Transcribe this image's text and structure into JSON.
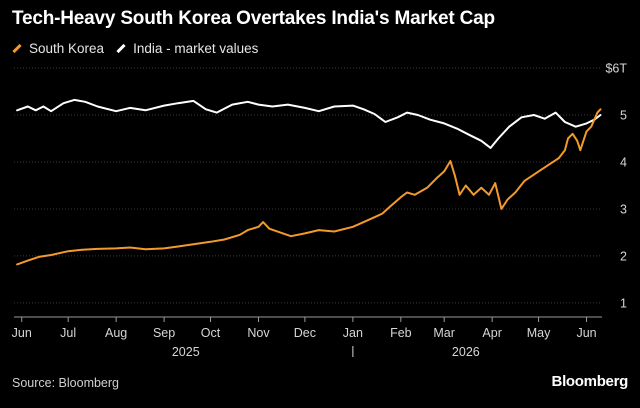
{
  "title": "Tech-Heavy South Korea Overtakes India's Market Cap",
  "legend": {
    "south_korea": "South Korea",
    "india": "India - market values"
  },
  "source": "Source: Bloomberg",
  "brand": "Bloomberg",
  "colors": {
    "south_korea": "#f39a2b",
    "india": "#ffffff",
    "grid": "#3a3a3a",
    "background": "#000000"
  },
  "chart_data": {
    "type": "line",
    "ylim": [
      0.7,
      6
    ],
    "y_unit_label": "$6T",
    "y_ticks": [
      {
        "value": 1,
        "label": "1"
      },
      {
        "value": 2,
        "label": "2"
      },
      {
        "value": 3,
        "label": "3"
      },
      {
        "value": 4,
        "label": "4"
      },
      {
        "value": 5,
        "label": "5"
      },
      {
        "value": 6,
        "label": "$6T"
      }
    ],
    "x_range": [
      "2025-05-27",
      "2026-06-11"
    ],
    "x_ticks": [
      {
        "date": "2025-06-01",
        "label": "Jun"
      },
      {
        "date": "2025-07-01",
        "label": "Jul"
      },
      {
        "date": "2025-08-01",
        "label": "Aug"
      },
      {
        "date": "2025-09-01",
        "label": "Sep"
      },
      {
        "date": "2025-10-01",
        "label": "Oct"
      },
      {
        "date": "2025-11-01",
        "label": "Nov"
      },
      {
        "date": "2025-12-01",
        "label": "Dec"
      },
      {
        "date": "2026-01-01",
        "label": "Jan"
      },
      {
        "date": "2026-02-01",
        "label": "Feb"
      },
      {
        "date": "2026-03-01",
        "label": "Mar"
      },
      {
        "date": "2026-04-01",
        "label": "Apr"
      },
      {
        "date": "2026-05-01",
        "label": "May"
      },
      {
        "date": "2026-06-01",
        "label": "Jun"
      }
    ],
    "year_labels": [
      {
        "date": "2025-09-15",
        "label": "2025"
      },
      {
        "date": "2026-03-15",
        "label": "2026"
      }
    ],
    "year_separator_date": "2026-01-01",
    "grid": "horizontal",
    "series": [
      {
        "name": "South Korea",
        "key": "south_korea",
        "points": [
          [
            "2025-05-29",
            1.82
          ],
          [
            "2025-06-05",
            1.9
          ],
          [
            "2025-06-12",
            1.98
          ],
          [
            "2025-06-20",
            2.02
          ],
          [
            "2025-07-01",
            2.1
          ],
          [
            "2025-07-10",
            2.13
          ],
          [
            "2025-07-20",
            2.15
          ],
          [
            "2025-08-01",
            2.16
          ],
          [
            "2025-08-10",
            2.18
          ],
          [
            "2025-08-20",
            2.14
          ],
          [
            "2025-09-01",
            2.16
          ],
          [
            "2025-09-10",
            2.2
          ],
          [
            "2025-09-20",
            2.25
          ],
          [
            "2025-10-01",
            2.3
          ],
          [
            "2025-10-10",
            2.35
          ],
          [
            "2025-10-20",
            2.45
          ],
          [
            "2025-10-25",
            2.55
          ],
          [
            "2025-11-01",
            2.62
          ],
          [
            "2025-11-04",
            2.72
          ],
          [
            "2025-11-08",
            2.58
          ],
          [
            "2025-11-15",
            2.5
          ],
          [
            "2025-11-22",
            2.42
          ],
          [
            "2025-12-01",
            2.48
          ],
          [
            "2025-12-10",
            2.55
          ],
          [
            "2025-12-20",
            2.52
          ],
          [
            "2026-01-01",
            2.62
          ],
          [
            "2026-01-10",
            2.75
          ],
          [
            "2026-01-20",
            2.9
          ],
          [
            "2026-01-25",
            3.05
          ],
          [
            "2026-02-01",
            3.25
          ],
          [
            "2026-02-05",
            3.35
          ],
          [
            "2026-02-10",
            3.3
          ],
          [
            "2026-02-18",
            3.45
          ],
          [
            "2026-02-24",
            3.65
          ],
          [
            "2026-03-01",
            3.8
          ],
          [
            "2026-03-05",
            4.02
          ],
          [
            "2026-03-08",
            3.7
          ],
          [
            "2026-03-11",
            3.3
          ],
          [
            "2026-03-15",
            3.5
          ],
          [
            "2026-03-20",
            3.3
          ],
          [
            "2026-03-25",
            3.45
          ],
          [
            "2026-03-30",
            3.3
          ],
          [
            "2026-04-03",
            3.55
          ],
          [
            "2026-04-07",
            3.0
          ],
          [
            "2026-04-11",
            3.2
          ],
          [
            "2026-04-16",
            3.35
          ],
          [
            "2026-04-22",
            3.6
          ],
          [
            "2026-05-01",
            3.8
          ],
          [
            "2026-05-08",
            3.95
          ],
          [
            "2026-05-14",
            4.08
          ],
          [
            "2026-05-18",
            4.25
          ],
          [
            "2026-05-20",
            4.5
          ],
          [
            "2026-05-23",
            4.6
          ],
          [
            "2026-05-26",
            4.45
          ],
          [
            "2026-05-28",
            4.25
          ],
          [
            "2026-06-01",
            4.65
          ],
          [
            "2026-06-04",
            4.75
          ],
          [
            "2026-06-08",
            5.05
          ],
          [
            "2026-06-10",
            5.12
          ]
        ]
      },
      {
        "name": "India - market values",
        "key": "india",
        "points": [
          [
            "2025-05-29",
            5.1
          ],
          [
            "2025-06-05",
            5.18
          ],
          [
            "2025-06-10",
            5.1
          ],
          [
            "2025-06-15",
            5.18
          ],
          [
            "2025-06-20",
            5.08
          ],
          [
            "2025-06-28",
            5.25
          ],
          [
            "2025-07-05",
            5.32
          ],
          [
            "2025-07-12",
            5.28
          ],
          [
            "2025-07-20",
            5.18
          ],
          [
            "2025-08-01",
            5.08
          ],
          [
            "2025-08-10",
            5.15
          ],
          [
            "2025-08-20",
            5.1
          ],
          [
            "2025-09-01",
            5.2
          ],
          [
            "2025-09-10",
            5.25
          ],
          [
            "2025-09-20",
            5.3
          ],
          [
            "2025-09-28",
            5.12
          ],
          [
            "2025-10-05",
            5.05
          ],
          [
            "2025-10-15",
            5.22
          ],
          [
            "2025-10-25",
            5.28
          ],
          [
            "2025-11-01",
            5.22
          ],
          [
            "2025-11-10",
            5.18
          ],
          [
            "2025-11-20",
            5.22
          ],
          [
            "2025-12-01",
            5.15
          ],
          [
            "2025-12-10",
            5.08
          ],
          [
            "2025-12-20",
            5.18
          ],
          [
            "2026-01-01",
            5.2
          ],
          [
            "2026-01-08",
            5.12
          ],
          [
            "2026-01-15",
            5.02
          ],
          [
            "2026-01-22",
            4.85
          ],
          [
            "2026-01-30",
            4.95
          ],
          [
            "2026-02-05",
            5.05
          ],
          [
            "2026-02-12",
            5.0
          ],
          [
            "2026-02-20",
            4.9
          ],
          [
            "2026-03-01",
            4.82
          ],
          [
            "2026-03-10",
            4.7
          ],
          [
            "2026-03-17",
            4.58
          ],
          [
            "2026-03-25",
            4.45
          ],
          [
            "2026-03-31",
            4.3
          ],
          [
            "2026-04-05",
            4.5
          ],
          [
            "2026-04-12",
            4.75
          ],
          [
            "2026-04-20",
            4.95
          ],
          [
            "2026-04-28",
            5.0
          ],
          [
            "2026-05-05",
            4.92
          ],
          [
            "2026-05-12",
            5.05
          ],
          [
            "2026-05-18",
            4.85
          ],
          [
            "2026-05-25",
            4.75
          ],
          [
            "2026-06-01",
            4.82
          ],
          [
            "2026-06-06",
            4.9
          ],
          [
            "2026-06-10",
            5.0
          ]
        ]
      }
    ]
  }
}
